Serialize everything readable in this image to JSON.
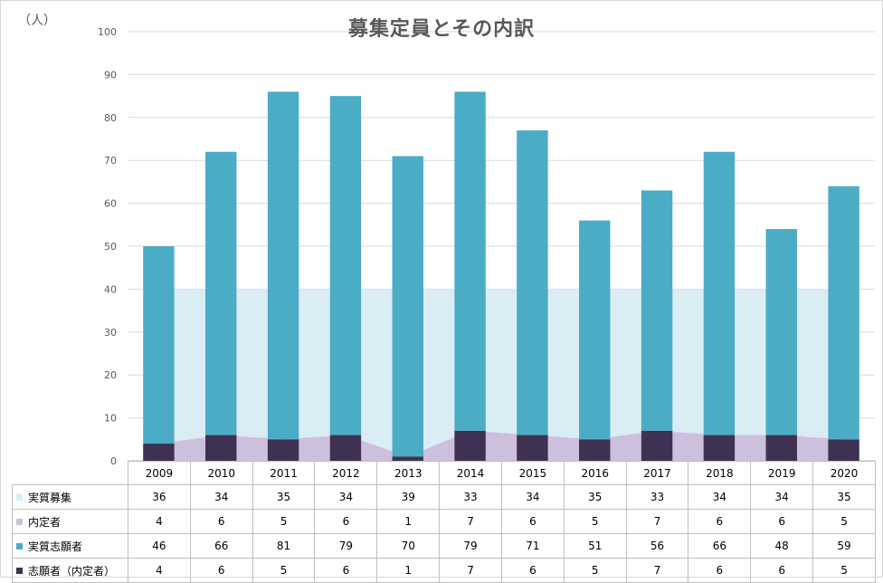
{
  "chart_data": {
    "type": "bar",
    "title": "募集定員とその内訳",
    "ylabel": "（人）",
    "ylim": [
      0,
      100
    ],
    "yticks": [
      "0",
      "10",
      "20",
      "30",
      "40",
      "50",
      "60",
      "70",
      "80",
      "90",
      "100"
    ],
    "categories": [
      "2009",
      "2010",
      "2011",
      "2012",
      "2013",
      "2014",
      "2015",
      "2016",
      "2017",
      "2018",
      "2019",
      "2020"
    ],
    "series": [
      {
        "name": "実質募集",
        "kind": "area",
        "color": "#DAEDF4",
        "values": [
          36,
          34,
          35,
          34,
          39,
          33,
          34,
          35,
          33,
          34,
          34,
          35
        ]
      },
      {
        "name": "内定者",
        "kind": "area",
        "color": "#CDC0DC",
        "values": [
          4,
          6,
          5,
          6,
          1,
          7,
          6,
          5,
          7,
          6,
          6,
          5
        ]
      },
      {
        "name": "実質志願者",
        "kind": "bar",
        "color": "#4BACC6",
        "values": [
          46,
          66,
          81,
          79,
          70,
          79,
          71,
          51,
          56,
          66,
          48,
          59
        ]
      },
      {
        "name": "志願者（内定者）",
        "kind": "bar",
        "color": "#3F3151",
        "values": [
          4,
          6,
          5,
          6,
          1,
          7,
          6,
          5,
          7,
          6,
          6,
          5
        ]
      }
    ],
    "grid": true,
    "legend": "data-table-bottom"
  }
}
